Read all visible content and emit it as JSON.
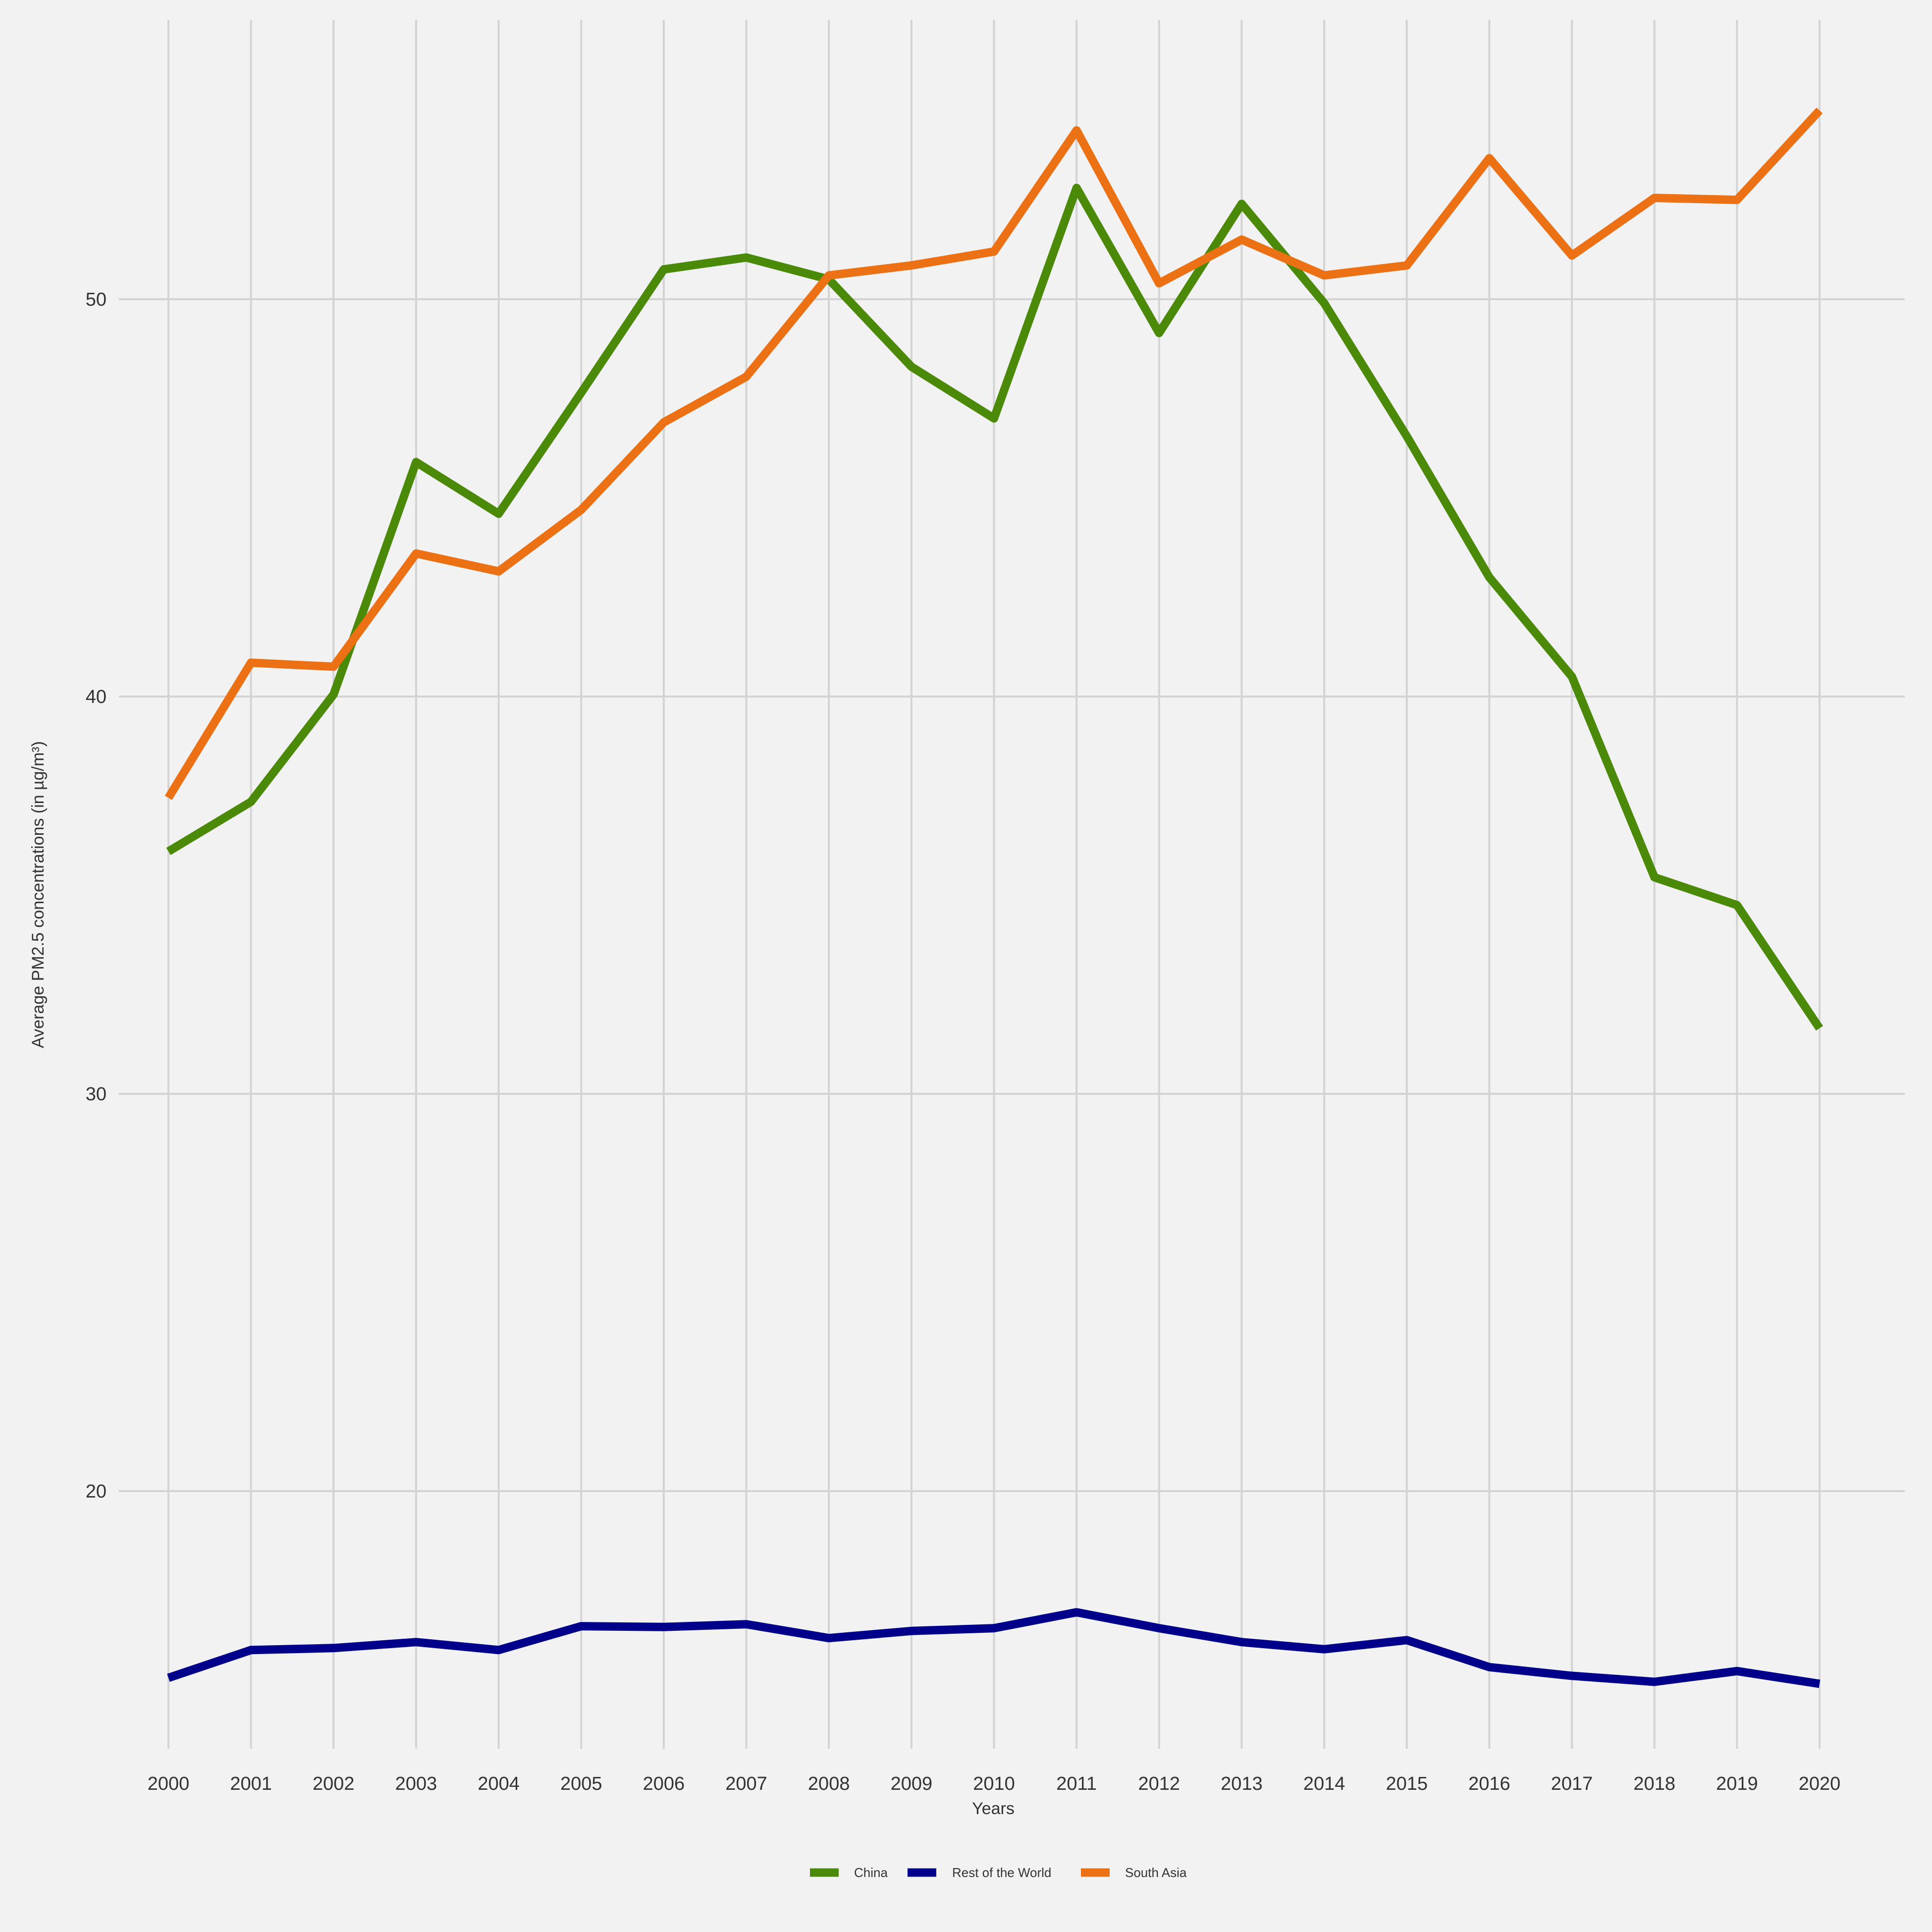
{
  "chart_data": {
    "type": "line",
    "title": "",
    "xlabel": "Years",
    "ylabel": "Average PM2.5 concentrations (in µg/m³)",
    "x": [
      2000,
      2001,
      2002,
      2003,
      2004,
      2005,
      2006,
      2007,
      2008,
      2009,
      2010,
      2011,
      2012,
      2013,
      2014,
      2015,
      2016,
      2017,
      2018,
      2019,
      2020
    ],
    "xticks": [
      "2000",
      "2001",
      "2002",
      "2003",
      "2004",
      "2005",
      "2006",
      "2007",
      "2008",
      "2009",
      "2010",
      "2011",
      "2012",
      "2013",
      "2014",
      "2015",
      "2016",
      "2017",
      "2018",
      "2019",
      "2020"
    ],
    "yticks": [
      "20",
      "30",
      "40",
      "50"
    ],
    "ylim": [
      13.9,
      56.9
    ],
    "grid": true,
    "legend_position": "bottom",
    "series": [
      {
        "name": "China",
        "color": "#4b8a08",
        "values": [
          36.1,
          37.35,
          40.05,
          45.9,
          44.6,
          47.65,
          50.75,
          51.05,
          50.5,
          48.3,
          47.0,
          52.8,
          49.15,
          52.4,
          49.9,
          46.55,
          43.0,
          40.5,
          35.45,
          34.75,
          31.65
        ]
      },
      {
        "name": "Rest of the World",
        "color": "#00008b",
        "values": [
          15.3,
          16.0,
          16.05,
          16.2,
          16.0,
          16.6,
          16.58,
          16.65,
          16.3,
          16.48,
          16.55,
          16.95,
          16.55,
          16.2,
          16.02,
          16.25,
          15.57,
          15.35,
          15.2,
          15.47,
          15.15
        ]
      },
      {
        "name": "South Asia",
        "color": "#ec7014",
        "values": [
          37.45,
          40.85,
          40.75,
          43.6,
          43.15,
          44.7,
          46.9,
          48.05,
          50.6,
          50.85,
          51.2,
          54.25,
          50.4,
          51.5,
          50.6,
          50.85,
          53.55,
          51.1,
          52.55,
          52.5,
          54.75
        ]
      }
    ]
  }
}
